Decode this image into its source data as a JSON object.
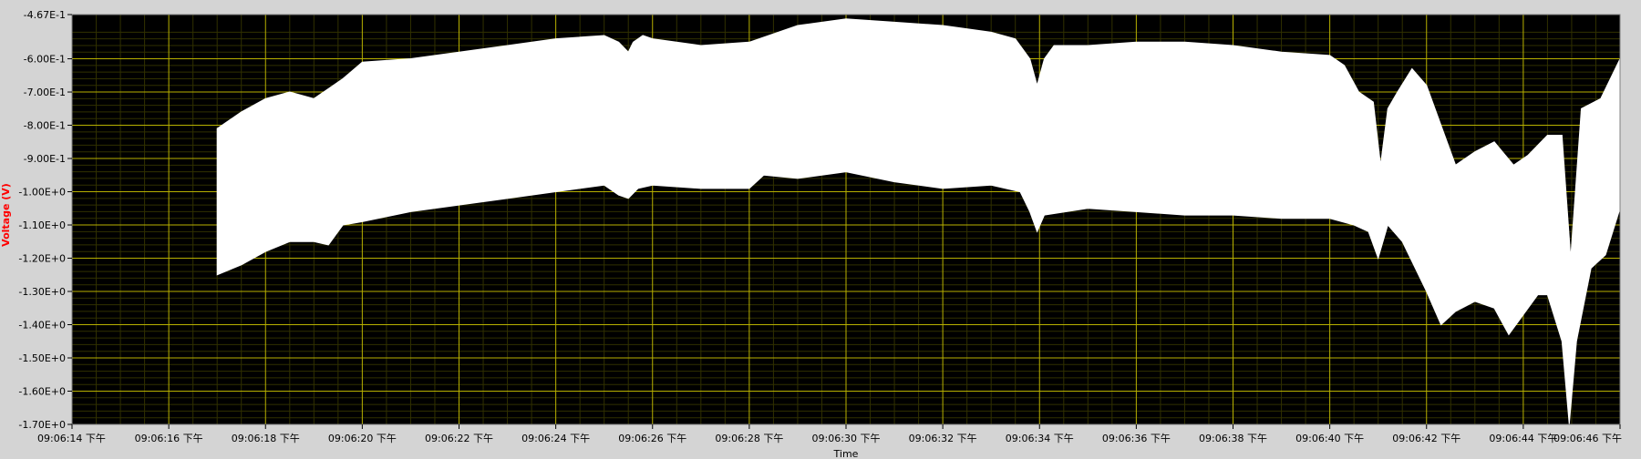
{
  "chart_data": {
    "type": "area",
    "title": "",
    "xlabel": "Time",
    "ylabel": "Voltage (V)",
    "colors": {
      "background": "#d4d4d4",
      "plot_bg": "#000000",
      "major_grid": "#b7b000",
      "minor_grid": "#303000",
      "signal": "#ffffff",
      "ylabel_color": "#ff0000",
      "text": "#000000"
    },
    "x_range_seconds": [
      0,
      32
    ],
    "x_ticks": [
      {
        "t": 0,
        "label": "09:06:14 下午"
      },
      {
        "t": 2,
        "label": "09:06:16 下午"
      },
      {
        "t": 4,
        "label": "09:06:18 下午"
      },
      {
        "t": 6,
        "label": "09:06:20 下午"
      },
      {
        "t": 8,
        "label": "09:06:22 下午"
      },
      {
        "t": 10,
        "label": "09:06:24 下午"
      },
      {
        "t": 12,
        "label": "09:06:26 下午"
      },
      {
        "t": 14,
        "label": "09:06:28 下午"
      },
      {
        "t": 16,
        "label": "09:06:30 下午"
      },
      {
        "t": 18,
        "label": "09:06:32 下午"
      },
      {
        "t": 20,
        "label": "09:06:34 下午"
      },
      {
        "t": 22,
        "label": "09:06:36 下午"
      },
      {
        "t": 24,
        "label": "09:06:38 下午"
      },
      {
        "t": 26,
        "label": "09:06:40 下午"
      },
      {
        "t": 28,
        "label": "09:06:42 下午"
      },
      {
        "t": 30,
        "label": "09:06:44 下午"
      },
      {
        "t": 32,
        "label": "09:06:46 下午"
      }
    ],
    "ylim": [
      -1.7,
      -0.467
    ],
    "y_ticks": [
      {
        "v": -0.467,
        "label": "-4.67E-1"
      },
      {
        "v": -0.6,
        "label": "-6.00E-1"
      },
      {
        "v": -0.7,
        "label": "-7.00E-1"
      },
      {
        "v": -0.8,
        "label": "-8.00E-1"
      },
      {
        "v": -0.9,
        "label": "-9.00E-1"
      },
      {
        "v": -1.0,
        "label": "-1.00E+0"
      },
      {
        "v": -1.1,
        "label": "-1.10E+0"
      },
      {
        "v": -1.2,
        "label": "-1.20E+0"
      },
      {
        "v": -1.3,
        "label": "-1.30E+0"
      },
      {
        "v": -1.4,
        "label": "-1.40E+0"
      },
      {
        "v": -1.5,
        "label": "-1.50E+0"
      },
      {
        "v": -1.6,
        "label": "-1.60E+0"
      },
      {
        "v": -1.7,
        "label": "-1.70E+0"
      }
    ],
    "grid": true,
    "series": [
      {
        "name": "",
        "upper_envelope": [
          [
            3.0,
            -0.81
          ],
          [
            3.5,
            -0.76
          ],
          [
            4.0,
            -0.72
          ],
          [
            4.5,
            -0.7
          ],
          [
            5.0,
            -0.72
          ],
          [
            5.3,
            -0.69
          ],
          [
            5.6,
            -0.66
          ],
          [
            6.0,
            -0.61
          ],
          [
            7.0,
            -0.6
          ],
          [
            8.0,
            -0.58
          ],
          [
            9.0,
            -0.56
          ],
          [
            10.0,
            -0.54
          ],
          [
            11.0,
            -0.53
          ],
          [
            11.3,
            -0.55
          ],
          [
            11.5,
            -0.58
          ],
          [
            11.6,
            -0.55
          ],
          [
            11.8,
            -0.53
          ],
          [
            12.0,
            -0.54
          ],
          [
            13.0,
            -0.56
          ],
          [
            14.0,
            -0.55
          ],
          [
            15.0,
            -0.5
          ],
          [
            16.0,
            -0.48
          ],
          [
            17.0,
            -0.49
          ],
          [
            18.0,
            -0.5
          ],
          [
            19.0,
            -0.52
          ],
          [
            19.5,
            -0.54
          ],
          [
            19.8,
            -0.6
          ],
          [
            19.95,
            -0.68
          ],
          [
            20.1,
            -0.6
          ],
          [
            20.3,
            -0.56
          ],
          [
            21.0,
            -0.56
          ],
          [
            22.0,
            -0.55
          ],
          [
            23.0,
            -0.55
          ],
          [
            24.0,
            -0.56
          ],
          [
            25.0,
            -0.58
          ],
          [
            26.0,
            -0.59
          ],
          [
            26.3,
            -0.62
          ],
          [
            26.6,
            -0.7
          ],
          [
            26.9,
            -0.73
          ],
          [
            27.05,
            -0.92
          ],
          [
            27.2,
            -0.75
          ],
          [
            27.4,
            -0.7
          ],
          [
            27.7,
            -0.63
          ],
          [
            28.0,
            -0.68
          ],
          [
            28.3,
            -0.8
          ],
          [
            28.6,
            -0.92
          ],
          [
            29.0,
            -0.88
          ],
          [
            29.4,
            -0.85
          ],
          [
            29.8,
            -0.92
          ],
          [
            30.1,
            -0.89
          ],
          [
            30.5,
            -0.83
          ],
          [
            30.8,
            -0.83
          ],
          [
            30.98,
            -1.2
          ],
          [
            31.2,
            -0.75
          ],
          [
            31.6,
            -0.72
          ],
          [
            32.0,
            -0.6
          ]
        ],
        "lower_envelope": [
          [
            3.0,
            -1.25
          ],
          [
            3.5,
            -1.22
          ],
          [
            4.0,
            -1.18
          ],
          [
            4.5,
            -1.15
          ],
          [
            5.0,
            -1.15
          ],
          [
            5.3,
            -1.16
          ],
          [
            5.6,
            -1.1
          ],
          [
            6.0,
            -1.09
          ],
          [
            7.0,
            -1.06
          ],
          [
            8.0,
            -1.04
          ],
          [
            9.0,
            -1.02
          ],
          [
            10.0,
            -1.0
          ],
          [
            11.0,
            -0.98
          ],
          [
            11.3,
            -1.01
          ],
          [
            11.5,
            -1.02
          ],
          [
            11.7,
            -0.99
          ],
          [
            12.0,
            -0.98
          ],
          [
            13.0,
            -0.99
          ],
          [
            14.0,
            -0.99
          ],
          [
            14.3,
            -0.95
          ],
          [
            15.0,
            -0.96
          ],
          [
            16.0,
            -0.94
          ],
          [
            17.0,
            -0.97
          ],
          [
            18.0,
            -0.99
          ],
          [
            19.0,
            -0.98
          ],
          [
            19.6,
            -1.0
          ],
          [
            19.8,
            -1.06
          ],
          [
            19.95,
            -1.12
          ],
          [
            20.1,
            -1.07
          ],
          [
            21.0,
            -1.05
          ],
          [
            22.0,
            -1.06
          ],
          [
            23.0,
            -1.07
          ],
          [
            24.0,
            -1.07
          ],
          [
            25.0,
            -1.08
          ],
          [
            26.0,
            -1.08
          ],
          [
            26.5,
            -1.1
          ],
          [
            26.8,
            -1.12
          ],
          [
            27.0,
            -1.2
          ],
          [
            27.2,
            -1.1
          ],
          [
            27.5,
            -1.15
          ],
          [
            28.0,
            -1.3
          ],
          [
            28.3,
            -1.4
          ],
          [
            28.6,
            -1.36
          ],
          [
            29.0,
            -1.33
          ],
          [
            29.4,
            -1.35
          ],
          [
            29.7,
            -1.43
          ],
          [
            30.0,
            -1.37
          ],
          [
            30.3,
            -1.31
          ],
          [
            30.5,
            -1.31
          ],
          [
            30.8,
            -1.45
          ],
          [
            30.95,
            -1.7
          ],
          [
            31.1,
            -1.45
          ],
          [
            31.4,
            -1.23
          ],
          [
            31.7,
            -1.19
          ],
          [
            32.0,
            -1.05
          ]
        ]
      }
    ]
  }
}
